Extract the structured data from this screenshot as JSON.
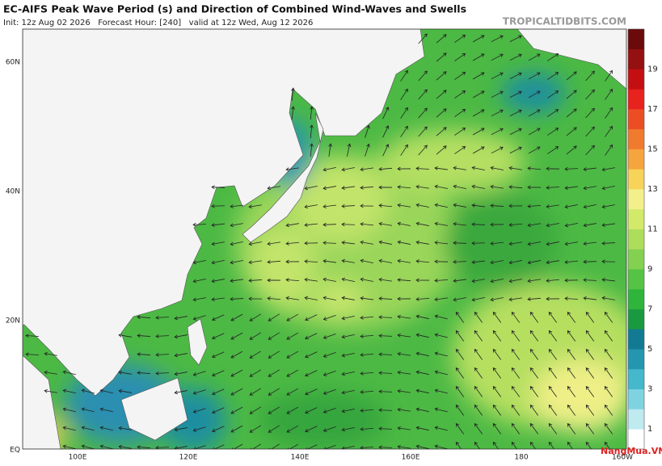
{
  "header": {
    "title": "EC-AIFS Peak Wave Period (s) and Direction of Combined Wind-Waves and Swells",
    "subtitle": "Init: 12z Aug 02 2026   Forecast Hour: [240]   valid at 12z Wed, Aug 12 2026",
    "source": "TROPICALTIDBITS.COM"
  },
  "map": {
    "lat_labels": [
      "60N",
      "40N",
      "20N",
      "EQ"
    ],
    "lon_labels": [
      "100E",
      "120E",
      "140E",
      "160E",
      "180",
      "160W"
    ]
  },
  "colorbar": {
    "labels": [
      "1",
      "3",
      "5",
      "7",
      "9",
      "11",
      "13",
      "15",
      "17",
      "19"
    ],
    "colors": [
      "#ffffff",
      "#bfeaf0",
      "#7fd3e0",
      "#45b8cc",
      "#2596b0",
      "#127a92",
      "#1a9a40",
      "#2fb43c",
      "#55c445",
      "#84d152",
      "#aedd5c",
      "#d3e96a",
      "#f3f08c",
      "#f7d35a",
      "#f5a43e",
      "#f07b2e",
      "#ec4e24",
      "#e8221c",
      "#c40f12",
      "#951010",
      "#6a0a0a"
    ]
  },
  "watermark": "NangMua.VN"
}
